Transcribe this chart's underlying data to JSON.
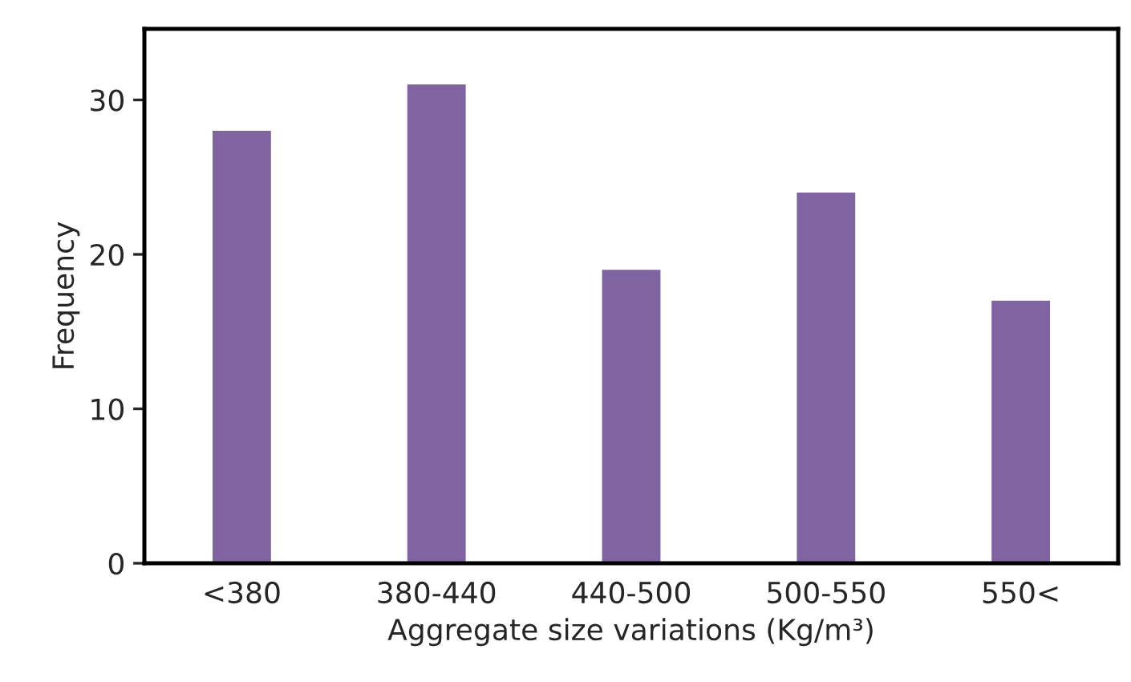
{
  "chart_data": {
    "type": "bar",
    "xlabel": "Aggregate size variations (Kg/m³)",
    "ylabel": "Frequency",
    "categories": [
      "<380",
      "380-440",
      "440-500",
      "500-550",
      "550<"
    ],
    "values": [
      28,
      31,
      19,
      24,
      17
    ],
    "color": "#8064a2",
    "ylim": [
      0,
      34.6
    ],
    "yticks": [
      0,
      10,
      20,
      30
    ],
    "grid": false
  }
}
